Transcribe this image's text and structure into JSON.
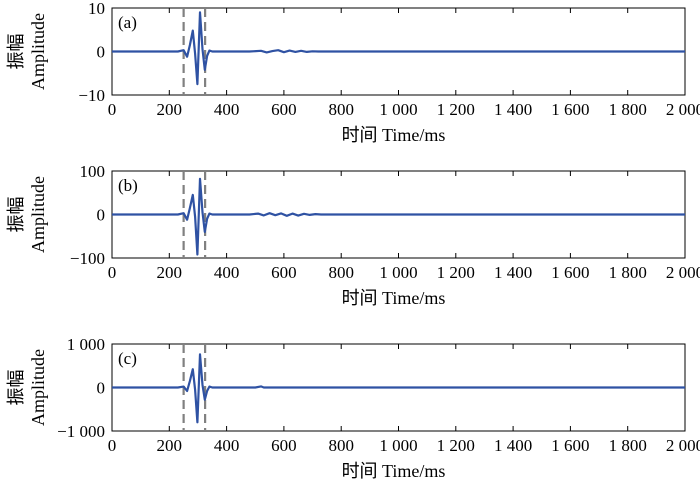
{
  "chart_data": [
    {
      "panel_label": "(a)",
      "type": "line",
      "ylabel_cn": "振幅",
      "ylabel_en": "Amplitude",
      "xlabel": "时间 Time/ms",
      "xlim": [
        0,
        2000
      ],
      "ylim": [
        -10,
        10
      ],
      "xticks": [
        0,
        200,
        400,
        600,
        800,
        1000,
        1200,
        1400,
        1600,
        1800,
        2000
      ],
      "xtick_labels": [
        "0",
        "200",
        "400",
        "600",
        "800",
        "1 000",
        "1 200",
        "1 400",
        "1 600",
        "1 800",
        "2 000"
      ],
      "yticks": [
        -10,
        0,
        10
      ],
      "ytick_labels": [
        "−10",
        "0",
        "10"
      ],
      "dashed_lines_x": [
        250,
        325
      ],
      "series_color": "#2F52A3",
      "series": [
        {
          "x": [
            0,
            230,
            250,
            262,
            272,
            282,
            290,
            298,
            307,
            316,
            324,
            332,
            340,
            350,
            380,
            480,
            520,
            540,
            560,
            580,
            600,
            620,
            640,
            660,
            680,
            700,
            720,
            2000
          ],
          "y": [
            0,
            0,
            0.3,
            -1.2,
            1.5,
            4.8,
            -0.5,
            -7.5,
            9.0,
            0.5,
            -4.2,
            -1.0,
            0.2,
            0,
            0,
            0,
            0.15,
            -0.2,
            0.1,
            0.3,
            -0.15,
            0.2,
            -0.1,
            0.15,
            -0.1,
            0.05,
            0,
            0
          ]
        }
      ]
    },
    {
      "panel_label": "(b)",
      "type": "line",
      "ylabel_cn": "振幅",
      "ylabel_en": "Amplitude",
      "xlabel": "时间 Time/ms",
      "xlim": [
        0,
        2000
      ],
      "ylim": [
        -100,
        100
      ],
      "xticks": [
        0,
        200,
        400,
        600,
        800,
        1000,
        1200,
        1400,
        1600,
        1800,
        2000
      ],
      "xtick_labels": [
        "0",
        "200",
        "400",
        "600",
        "800",
        "1 000",
        "1 200",
        "1 400",
        "1 600",
        "1 800",
        "2 000"
      ],
      "yticks": [
        -100,
        0,
        100
      ],
      "ytick_labels": [
        "−100",
        "0",
        "100"
      ],
      "dashed_lines_x": [
        250,
        325
      ],
      "series_color": "#2F52A3",
      "series": [
        {
          "x": [
            0,
            230,
            250,
            262,
            272,
            282,
            290,
            298,
            307,
            316,
            324,
            332,
            340,
            350,
            480,
            510,
            530,
            550,
            570,
            590,
            610,
            630,
            650,
            670,
            690,
            710,
            730,
            2000
          ],
          "y": [
            0,
            0,
            3,
            -12,
            15,
            45,
            -5,
            -92,
            82,
            5,
            -40,
            -10,
            2,
            0,
            0,
            2,
            -2,
            3,
            -1.5,
            2.5,
            -3,
            2,
            -2.5,
            1.5,
            -1,
            1,
            0,
            0
          ]
        }
      ]
    },
    {
      "panel_label": "(c)",
      "type": "line",
      "ylabel_cn": "振幅",
      "ylabel_en": "Amplitude",
      "xlabel": "时间 Time/ms",
      "xlim": [
        0,
        2000
      ],
      "ylim": [
        -1000,
        1000
      ],
      "xticks": [
        0,
        200,
        400,
        600,
        800,
        1000,
        1200,
        1400,
        1600,
        1800,
        2000
      ],
      "xtick_labels": [
        "0",
        "200",
        "400",
        "600",
        "800",
        "1 000",
        "1 200",
        "1 400",
        "1 600",
        "1 800",
        "2 000"
      ],
      "yticks": [
        -1000,
        0,
        1000
      ],
      "ytick_labels": [
        "−1 000",
        "0",
        "1 000"
      ],
      "dashed_lines_x": [
        250,
        325
      ],
      "series_color": "#2F52A3",
      "series": [
        {
          "x": [
            0,
            230,
            250,
            262,
            272,
            282,
            290,
            298,
            307,
            316,
            324,
            332,
            340,
            350,
            500,
            520,
            530,
            2000
          ],
          "y": [
            0,
            0,
            20,
            -80,
            150,
            420,
            -50,
            -800,
            760,
            60,
            -280,
            -80,
            20,
            0,
            0,
            25,
            0,
            0
          ]
        }
      ]
    }
  ]
}
